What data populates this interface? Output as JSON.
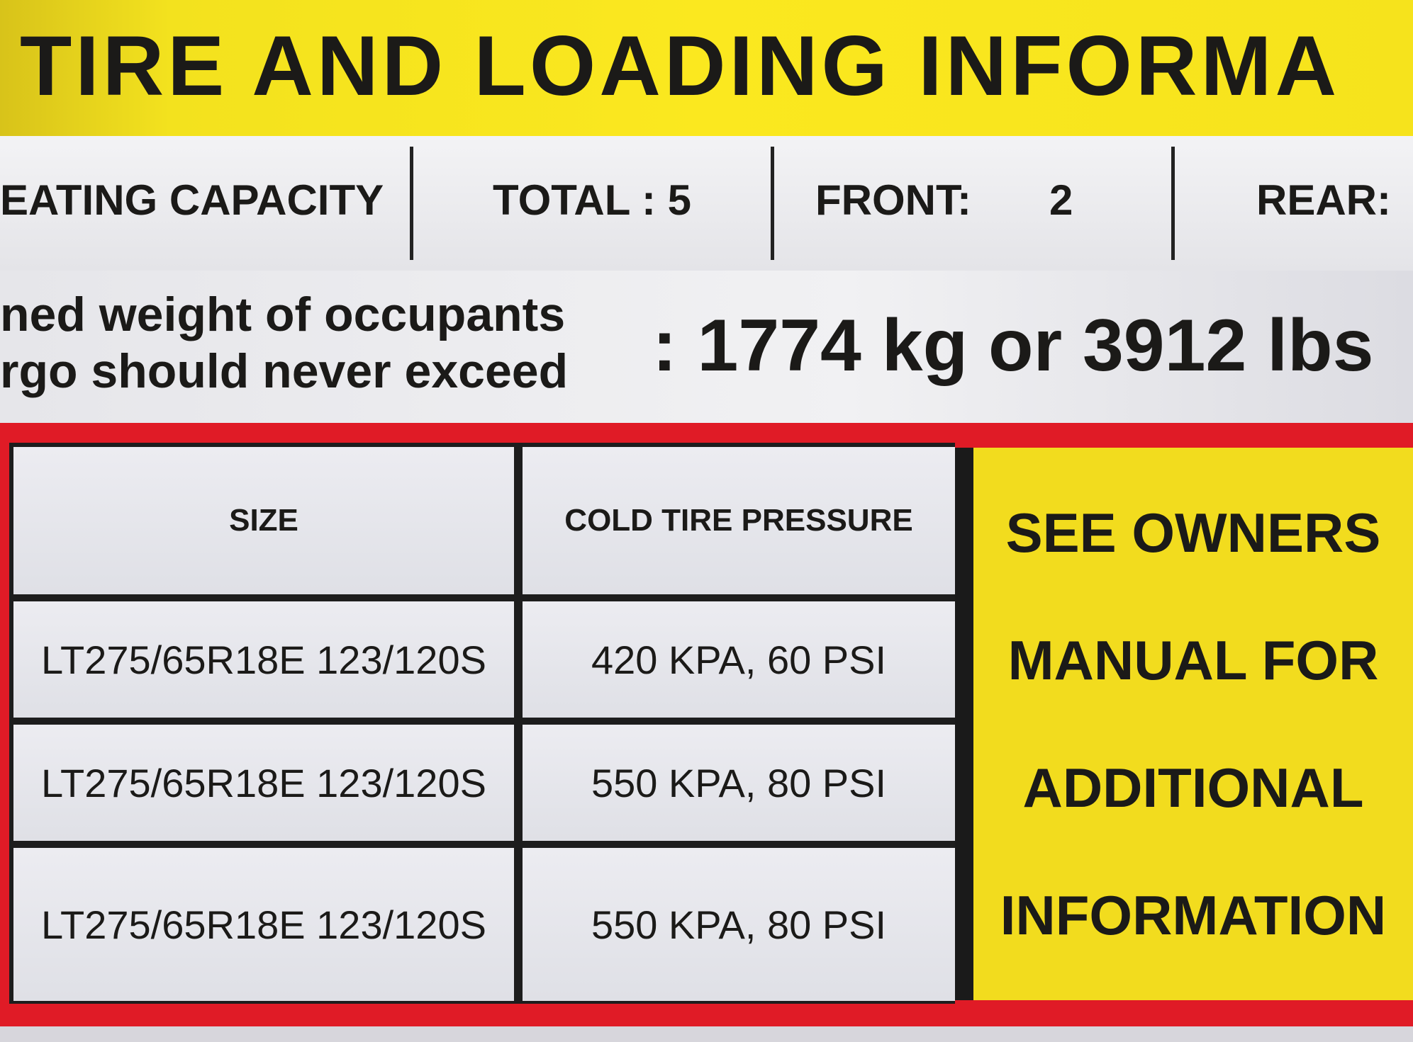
{
  "label": {
    "title": "TIRE AND LOADING INFORMA",
    "seating": {
      "label": "EATING CAPACITY",
      "total": "TOTAL : 5",
      "front_label": "FRONT:",
      "front_value": "2",
      "rear_label": "REAR:"
    },
    "weight": {
      "line1": "ned weight of occupants",
      "line2": "rgo should never exceed",
      "value": ": 1774 kg or 3912 lbs"
    },
    "table": {
      "headers": [
        "SIZE",
        "COLD TIRE PRESSURE"
      ],
      "rows": [
        [
          "LT275/65R18E 123/120S",
          "420 KPA,  60 PSI"
        ],
        [
          "LT275/65R18E 123/120S",
          "550 KPA,  80 PSI"
        ],
        [
          "LT275/65R18E 123/120S",
          "550 KPA,  80 PSI"
        ]
      ]
    },
    "notice": [
      "SEE OWNERS",
      "MANUAL FOR",
      "ADDITIONAL",
      "INFORMATION"
    ],
    "colors": {
      "yellow": "#f6e31c",
      "red": "#e01b26",
      "black": "#1b1a18"
    }
  }
}
